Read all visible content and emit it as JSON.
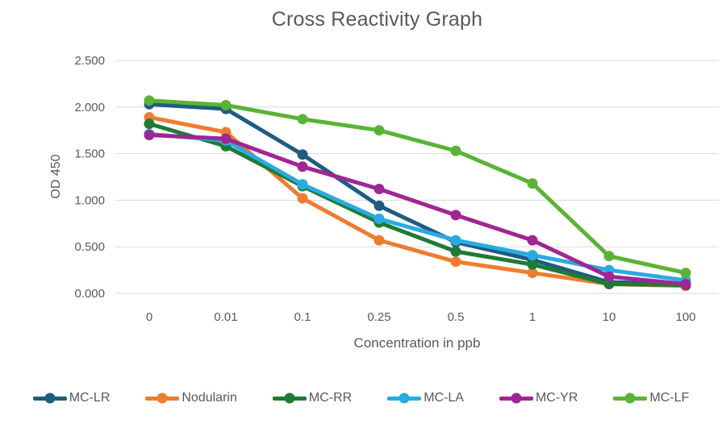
{
  "chart_data": {
    "type": "line",
    "title": "Cross Reactivity Graph",
    "xlabel": "Concentration in ppb",
    "ylabel": "OD 450",
    "categories": [
      "0",
      "0.01",
      "0.1",
      "0.25",
      "0.5",
      "1",
      "10",
      "100"
    ],
    "ylim": [
      0,
      2.5
    ],
    "ytick_labels": [
      "0.000",
      "0.500",
      "1.000",
      "1.500",
      "2.000",
      "2.500"
    ],
    "grid": "horizontal",
    "legend_position": "bottom",
    "text_color": "#595959",
    "gridline_color": "#D9D9D9",
    "series": [
      {
        "name": "MC-LR",
        "color": "#1F5C80",
        "values": [
          2.03,
          1.98,
          1.49,
          0.94,
          0.55,
          0.36,
          0.12,
          0.1
        ]
      },
      {
        "name": "Nodularin",
        "color": "#ED7D31",
        "values": [
          1.89,
          1.73,
          1.02,
          0.57,
          0.34,
          0.22,
          0.1,
          0.08
        ]
      },
      {
        "name": "MC-RR",
        "color": "#1E7B34",
        "values": [
          1.82,
          1.58,
          1.15,
          0.76,
          0.45,
          0.31,
          0.1,
          0.09
        ]
      },
      {
        "name": "MC-LA",
        "color": "#29ABE2",
        "values": [
          1.71,
          1.64,
          1.17,
          0.8,
          0.57,
          0.41,
          0.25,
          0.14
        ]
      },
      {
        "name": "MC-YR",
        "color": "#A02693",
        "values": [
          1.7,
          1.66,
          1.36,
          1.12,
          0.84,
          0.57,
          0.18,
          0.1
        ]
      },
      {
        "name": "MC-LF",
        "color": "#5BB336",
        "values": [
          2.07,
          2.02,
          1.87,
          1.75,
          1.53,
          1.18,
          0.4,
          0.22
        ]
      }
    ]
  }
}
